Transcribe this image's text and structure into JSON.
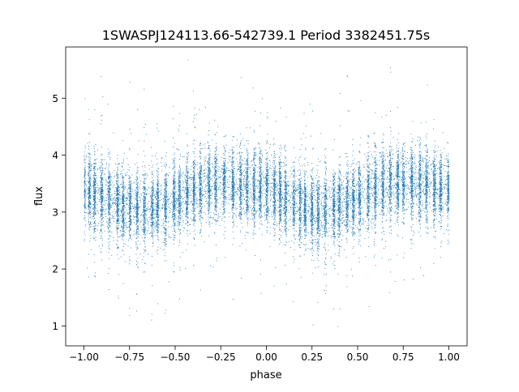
{
  "chart_data": {
    "type": "scatter",
    "title": "1SWASPJ124113.66-542739.1 Period 3382451.75s",
    "xlabel": "phase",
    "ylabel": "flux",
    "xlim": [
      -1.1,
      1.1
    ],
    "ylim": [
      0.65,
      5.9
    ],
    "xticks": [
      -1.0,
      -0.75,
      -0.5,
      -0.25,
      0.0,
      0.25,
      0.5,
      0.75,
      1.0
    ],
    "xtick_labels": [
      "−1.00",
      "−0.75",
      "−0.50",
      "−0.25",
      "0.00",
      "0.25",
      "0.50",
      "0.75",
      "1.00"
    ],
    "yticks": [
      1,
      2,
      3,
      4,
      5
    ],
    "ytick_labels": [
      "1",
      "2",
      "3",
      "4",
      "5"
    ],
    "grid": false,
    "legend": "none",
    "point_color": "#1f77b4",
    "profile": {
      "description_phase": [
        -1.0,
        -0.9,
        -0.8,
        -0.7,
        -0.6,
        -0.5,
        -0.4,
        -0.3,
        -0.2,
        -0.1,
        0.0,
        0.1,
        0.2,
        0.3,
        0.4,
        0.5,
        0.6,
        0.7,
        0.8,
        0.9,
        1.0
      ],
      "median_flux": [
        3.4,
        3.25,
        3.15,
        3.05,
        3.1,
        3.2,
        3.4,
        3.55,
        3.5,
        3.45,
        3.45,
        3.25,
        3.1,
        3.0,
        3.1,
        3.25,
        3.45,
        3.5,
        3.5,
        3.45,
        3.4
      ]
    },
    "n_points": 16000
  }
}
